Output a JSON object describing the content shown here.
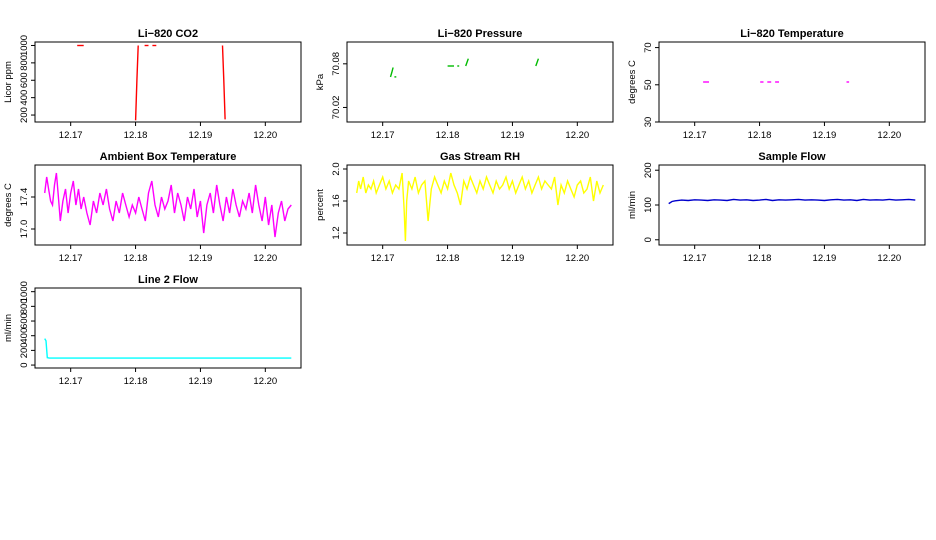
{
  "chart_data": [
    {
      "type": "line",
      "title": "Li−820 CO2",
      "xlabel": "",
      "ylabel": "Licor ppm",
      "color": "#ff0000",
      "xlim": [
        12.1645,
        12.2055
      ],
      "ylim": [
        120,
        1040
      ],
      "xticks": [
        "12.17",
        "12.18",
        "12.19",
        "12.20"
      ],
      "yticks": [
        "200",
        "400",
        "600",
        "800",
        "1000"
      ],
      "series": [
        {
          "x": [
            12.171,
            12.172
          ],
          "y": [
            1000,
            1000
          ]
        },
        {
          "x": [
            12.18,
            12.1802,
            12.1804
          ],
          "y": [
            140,
            600,
            1000
          ]
        },
        {
          "x": [
            12.1814,
            12.182
          ],
          "y": [
            1000,
            1000
          ]
        },
        {
          "x": [
            12.1826,
            12.1832
          ],
          "y": [
            1000,
            1000
          ]
        },
        {
          "x": [
            12.1934,
            12.1936,
            12.1938
          ],
          "y": [
            1000,
            600,
            150
          ]
        }
      ]
    },
    {
      "type": "line",
      "title": "Li−820 Pressure",
      "xlabel": "",
      "ylabel": "kPa",
      "color": "#00bb00",
      "xlim": [
        12.1645,
        12.2055
      ],
      "ylim": [
        70.0,
        70.11
      ],
      "xticks": [
        "12.17",
        "12.18",
        "12.19",
        "12.20"
      ],
      "yticks": [
        "70.02",
        "70.08"
      ],
      "series": [
        {
          "x": [
            12.1712,
            12.1714,
            12.1716
          ],
          "y": [
            70.062,
            70.068,
            70.075
          ]
        },
        {
          "x": [
            12.1718,
            12.1721
          ],
          "y": [
            70.062,
            70.062
          ]
        },
        {
          "x": [
            12.18,
            12.181
          ],
          "y": [
            70.077,
            70.077
          ]
        },
        {
          "x": [
            12.1815,
            12.1818
          ],
          "y": [
            70.077,
            70.077
          ]
        },
        {
          "x": [
            12.1828,
            12.183,
            12.1832
          ],
          "y": [
            70.077,
            70.082,
            70.087
          ]
        },
        {
          "x": [
            12.1936,
            12.1938,
            12.194
          ],
          "y": [
            70.077,
            70.082,
            70.087
          ]
        }
      ]
    },
    {
      "type": "line",
      "title": "Li−820 Temperature",
      "xlabel": "",
      "ylabel": "degrees C",
      "color": "#ff00ff",
      "xlim": [
        12.1645,
        12.2055
      ],
      "ylim": [
        30,
        73
      ],
      "xticks": [
        "12.17",
        "12.18",
        "12.19",
        "12.20"
      ],
      "yticks": [
        "30",
        "50",
        "70"
      ],
      "series": [
        {
          "x": [
            12.1713,
            12.1722
          ],
          "y": [
            51.5,
            51.5
          ]
        },
        {
          "x": [
            12.1801,
            12.1806
          ],
          "y": [
            51.5,
            51.5
          ]
        },
        {
          "x": [
            12.1812,
            12.1818
          ],
          "y": [
            51.5,
            51.5
          ]
        },
        {
          "x": [
            12.1824,
            12.183
          ],
          "y": [
            51.5,
            51.5
          ]
        },
        {
          "x": [
            12.1934,
            12.1938
          ],
          "y": [
            51.5,
            51.5
          ]
        }
      ]
    },
    {
      "type": "line",
      "title": "Ambient Box Temperature",
      "xlabel": "",
      "ylabel": "degrees C",
      "color": "#ff00ff",
      "xlim": [
        12.1645,
        12.2055
      ],
      "ylim": [
        16.8,
        17.8
      ],
      "xticks": [
        "12.17",
        "12.18",
        "12.19",
        "12.20"
      ],
      "yticks": [
        "17.0",
        "17.4"
      ],
      "series": [
        {
          "x": [
            12.166,
            12.1663,
            12.1666,
            12.1669,
            12.1672,
            12.1675,
            12.1678,
            12.1681,
            12.1684,
            12.1688,
            12.1692,
            12.1696,
            12.17,
            12.1704,
            12.1708,
            12.1712,
            12.1716,
            12.172,
            12.1725,
            12.173,
            12.1735,
            12.174,
            12.1745,
            12.175,
            12.1755,
            12.176,
            12.1765,
            12.177,
            12.1775,
            12.178,
            12.1785,
            12.179,
            12.1795,
            12.18,
            12.1805,
            12.181,
            12.1815,
            12.182,
            12.1825,
            12.183,
            12.1835,
            12.184,
            12.1845,
            12.185,
            12.1855,
            12.186,
            12.1865,
            12.187,
            12.1875,
            12.188,
            12.1885,
            12.189,
            12.1895,
            12.19,
            12.1905,
            12.191,
            12.1915,
            12.192,
            12.1925,
            12.193,
            12.1935,
            12.194,
            12.1945,
            12.195,
            12.1955,
            12.196,
            12.1965,
            12.197,
            12.1975,
            12.198,
            12.1985,
            12.199,
            12.1995,
            12.2,
            12.2005,
            12.201,
            12.2015,
            12.202,
            12.2025,
            12.203,
            12.2035,
            12.204
          ],
          "y": [
            17.45,
            17.65,
            17.5,
            17.35,
            17.3,
            17.55,
            17.7,
            17.4,
            17.1,
            17.35,
            17.5,
            17.2,
            17.45,
            17.6,
            17.3,
            17.5,
            17.25,
            17.4,
            17.2,
            17.05,
            17.35,
            17.2,
            17.45,
            17.3,
            17.5,
            17.25,
            17.1,
            17.35,
            17.2,
            17.45,
            17.3,
            17.15,
            17.3,
            17.2,
            17.4,
            17.25,
            17.1,
            17.45,
            17.6,
            17.3,
            17.15,
            17.4,
            17.25,
            17.35,
            17.55,
            17.2,
            17.45,
            17.3,
            17.1,
            17.4,
            17.25,
            17.5,
            17.15,
            17.35,
            16.95,
            17.3,
            17.45,
            17.2,
            17.55,
            17.3,
            17.1,
            17.4,
            17.2,
            17.5,
            17.3,
            17.15,
            17.35,
            17.25,
            17.45,
            17.2,
            17.55,
            17.3,
            17.1,
            17.4,
            17.05,
            17.3,
            16.9,
            17.2,
            17.35,
            17.1,
            17.25,
            17.3
          ]
        }
      ]
    },
    {
      "type": "line",
      "title": "Gas Stream RH",
      "xlabel": "",
      "ylabel": "percent",
      "color": "#ffff00",
      "xlim": [
        12.1645,
        12.2055
      ],
      "ylim": [
        1.05,
        2.05
      ],
      "xticks": [
        "12.17",
        "12.18",
        "12.19",
        "12.20"
      ],
      "yticks": [
        "1.2",
        "1.6",
        "2.0"
      ],
      "series": [
        {
          "x": [
            12.166,
            12.1663,
            12.1666,
            12.167,
            12.1674,
            12.1678,
            12.1682,
            12.1686,
            12.169,
            12.1695,
            12.17,
            12.1705,
            12.171,
            12.1715,
            12.172,
            12.1725,
            12.173,
            12.1733,
            12.1735,
            12.1737,
            12.174,
            12.1745,
            12.175,
            12.1755,
            12.176,
            12.1765,
            12.177,
            12.1775,
            12.178,
            12.1785,
            12.179,
            12.1795,
            12.18,
            12.1805,
            12.181,
            12.1815,
            12.182,
            12.1825,
            12.183,
            12.1835,
            12.184,
            12.1845,
            12.185,
            12.1855,
            12.186,
            12.1865,
            12.187,
            12.1875,
            12.188,
            12.1885,
            12.189,
            12.1895,
            12.19,
            12.1905,
            12.191,
            12.1915,
            12.192,
            12.1925,
            12.193,
            12.1935,
            12.194,
            12.1945,
            12.195,
            12.1955,
            12.196,
            12.1965,
            12.197,
            12.1975,
            12.198,
            12.1985,
            12.199,
            12.1995,
            12.2,
            12.2005,
            12.201,
            12.2015,
            12.202,
            12.2025,
            12.203,
            12.2035,
            12.204
          ],
          "y": [
            1.7,
            1.85,
            1.75,
            1.9,
            1.7,
            1.8,
            1.75,
            1.85,
            1.7,
            1.8,
            1.9,
            1.75,
            1.85,
            1.7,
            1.8,
            1.75,
            1.95,
            1.5,
            1.1,
            1.6,
            1.85,
            1.75,
            1.9,
            1.7,
            1.8,
            1.85,
            1.35,
            1.75,
            1.9,
            1.8,
            1.7,
            1.85,
            1.75,
            1.95,
            1.8,
            1.7,
            1.55,
            1.85,
            1.75,
            1.9,
            1.8,
            1.7,
            1.85,
            1.75,
            1.9,
            1.8,
            1.7,
            1.85,
            1.75,
            1.8,
            1.9,
            1.75,
            1.85,
            1.7,
            1.8,
            1.9,
            1.75,
            1.85,
            1.7,
            1.8,
            1.9,
            1.75,
            1.85,
            1.8,
            1.75,
            1.9,
            1.55,
            1.8,
            1.7,
            1.85,
            1.75,
            1.65,
            1.8,
            1.85,
            1.7,
            1.75,
            1.9,
            1.6,
            1.85,
            1.7,
            1.8
          ]
        }
      ]
    },
    {
      "type": "line",
      "title": "Sample Flow",
      "xlabel": "",
      "ylabel": "ml/min",
      "color": "#0000cc",
      "xlim": [
        12.1645,
        12.2055
      ],
      "ylim": [
        -15,
        215
      ],
      "xticks": [
        "12.17",
        "12.18",
        "12.19",
        "12.20"
      ],
      "yticks": [
        "0",
        "100",
        "200"
      ],
      "series": [
        {
          "x": [
            12.166,
            12.1665,
            12.167,
            12.168,
            12.169,
            12.17,
            12.171,
            12.172,
            12.173,
            12.174,
            12.175,
            12.176,
            12.177,
            12.178,
            12.179,
            12.18,
            12.181,
            12.182,
            12.183,
            12.184,
            12.185,
            12.186,
            12.187,
            12.188,
            12.189,
            12.19,
            12.191,
            12.192,
            12.193,
            12.194,
            12.195,
            12.196,
            12.197,
            12.198,
            12.199,
            12.2,
            12.201,
            12.202,
            12.203,
            12.204
          ],
          "y": [
            104,
            110,
            112,
            114,
            113,
            115,
            114,
            113,
            115,
            114,
            113,
            116,
            114,
            115,
            113,
            114,
            116,
            113,
            115,
            114,
            115,
            116,
            114,
            115,
            114,
            113,
            115,
            116,
            114,
            115,
            113,
            116,
            114,
            115,
            114,
            116,
            114,
            115,
            116,
            114
          ]
        }
      ]
    },
    {
      "type": "line",
      "title": "Line 2 Flow",
      "xlabel": "",
      "ylabel": "ml/min",
      "color": "#00ffff",
      "xlim": [
        12.1645,
        12.2055
      ],
      "ylim": [
        -40,
        1050
      ],
      "xticks": [
        "12.17",
        "12.18",
        "12.19",
        "12.20"
      ],
      "yticks": [
        "0",
        "200",
        "400",
        "600",
        "800",
        "1000"
      ],
      "series": [
        {
          "x": [
            12.166,
            12.1662,
            12.1664,
            12.1667,
            12.17,
            12.175,
            12.18,
            12.185,
            12.19,
            12.195,
            12.2,
            12.204
          ],
          "y": [
            360,
            330,
            100,
            95,
            95,
            95,
            95,
            95,
            95,
            95,
            95,
            95
          ]
        }
      ]
    }
  ]
}
